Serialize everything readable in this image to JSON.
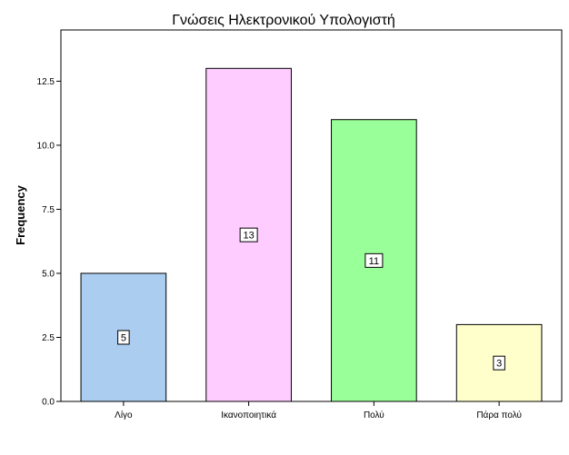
{
  "chart_data": {
    "type": "bar",
    "title": "Γνώσεις Ηλεκτρονικού Υπολογιστή",
    "xlabel": "",
    "ylabel": "Frequency",
    "categories": [
      "Λίγο",
      "Ικανοποιητικά",
      "Πολύ",
      "Πάρα πολύ"
    ],
    "values": [
      5,
      13,
      11,
      3
    ],
    "data_labels": [
      "5",
      "13",
      "11",
      "3"
    ],
    "colors": [
      "#abcdef",
      "#ffccff",
      "#99ff99",
      "#ffffcc"
    ],
    "ylim": [
      0,
      14.5
    ],
    "yticks": [
      0,
      2.5,
      5,
      7.5,
      10,
      12.5
    ],
    "ytick_labels": [
      "0.0",
      "2.5",
      "5.0",
      "7.5",
      "10.0",
      "12.5"
    ],
    "grid": false,
    "legend": "none"
  }
}
